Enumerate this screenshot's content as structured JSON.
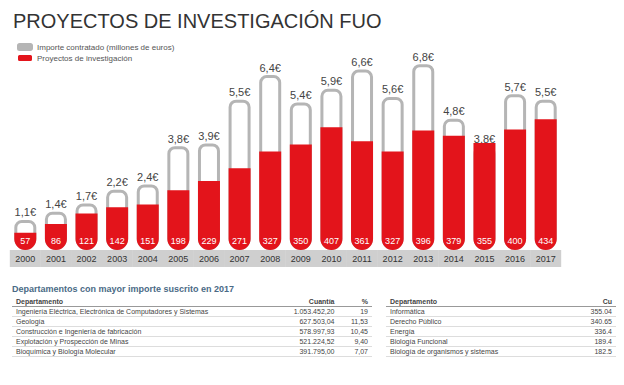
{
  "chart_data": {
    "type": "bar",
    "title": "PROYECTOS DE INVESTIGACIÓN FUO",
    "categories": [
      "2000",
      "2001",
      "2002",
      "2003",
      "2004",
      "2005",
      "2006",
      "2007",
      "2008",
      "2009",
      "2010",
      "2011",
      "2012",
      "2013",
      "2014",
      "2015",
      "2016",
      "2017"
    ],
    "series": [
      {
        "name": "Importe contratado (millones de euros)",
        "color": "#b5b5b5",
        "axis": "y2",
        "values": [
          1.1,
          1.4,
          1.7,
          2.2,
          2.4,
          3.8,
          3.9,
          5.5,
          6.4,
          5.4,
          5.9,
          6.6,
          5.6,
          6.8,
          4.8,
          3.8,
          5.7,
          5.5
        ],
        "value_labels": [
          "1,1€",
          "1,4€",
          "1,7€",
          "2,2€",
          "2,4€",
          "3,8€",
          "3,9€",
          "5,5€",
          "6,4€",
          "5,4€",
          "5,9€",
          "6,6€",
          "5,6€",
          "6,8€",
          "4,8€",
          "3,8€",
          "5,7€",
          "5,5€"
        ]
      },
      {
        "name": "Proyectos de investigación",
        "color": "#e3141b",
        "values": [
          57,
          86,
          121,
          142,
          151,
          198,
          229,
          271,
          327,
          350,
          407,
          361,
          327,
          396,
          379,
          355,
          400,
          434
        ]
      }
    ],
    "ylim": [
      0,
      680
    ],
    "y2lim": [
      0,
      7.5
    ],
    "data_labels": true,
    "tick_labels": "x",
    "grid": false,
    "legend": "top-left"
  },
  "tables": {
    "title": "Departamentos con mayor importe suscrito en 2017",
    "left": {
      "header": [
        "Departamento",
        "Cuantía",
        "%"
      ],
      "rows": [
        [
          "Ingeniería Eléctrica, Electrónica de Computadores y Sistemas",
          "1.053.452,20",
          "19"
        ],
        [
          "Geología",
          "627.503,04",
          "11,53"
        ],
        [
          "Construcción e Ingeniería de fabricación",
          "578.997,93",
          "10,45"
        ],
        [
          "Explotación y Prospección de Minas",
          "521.224,52",
          "9,40"
        ],
        [
          "Bioquímica y Biología Molecular",
          "391.795,00",
          "7,07"
        ]
      ]
    },
    "right": {
      "header": [
        "Departamento",
        "Cu"
      ],
      "rows": [
        [
          "Informática",
          "355.04"
        ],
        [
          "Derecho Público",
          "340.65"
        ],
        [
          "Energía",
          "336.4"
        ],
        [
          "Biología Funcional",
          "189.4"
        ],
        [
          "Biología de organismos y sistemas",
          "182.5"
        ]
      ]
    }
  }
}
